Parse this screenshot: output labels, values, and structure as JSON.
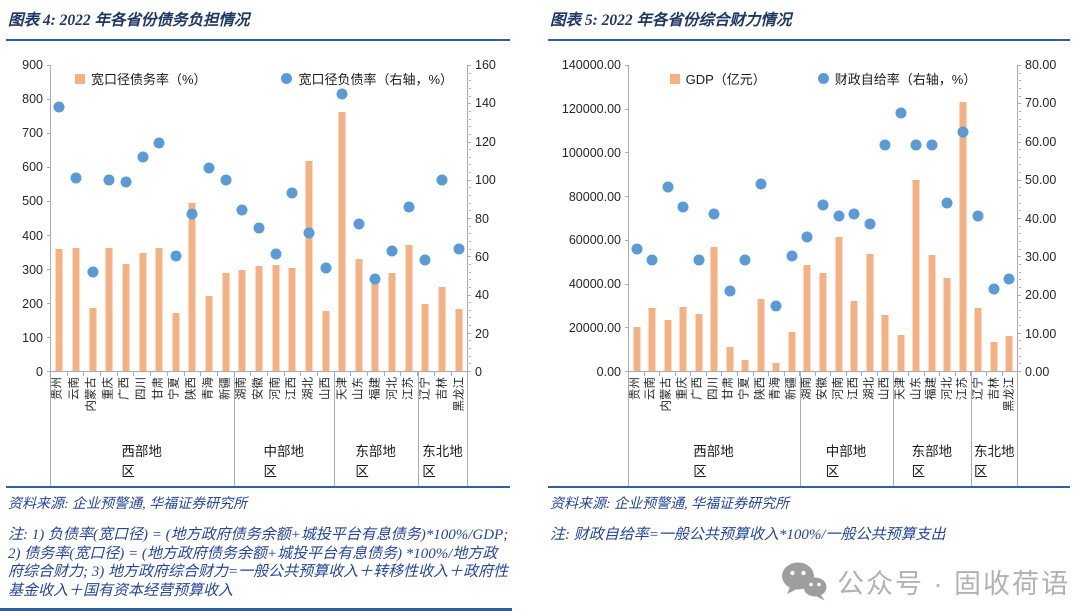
{
  "colors": {
    "bar": "#F4B183",
    "dot": "#5B9BD5",
    "title_text": "#1F3864",
    "note_text": "#24459A",
    "rule": "#2E5FA3",
    "axis": "#ACACAC",
    "watermark": "#B2B2B2"
  },
  "panels": [
    {
      "title": "图表 4: 2022 年各省份债务负担情况",
      "source": "资料来源: 企业预警通, 华福证券研究所",
      "note": "注: 1) 负债率(宽口径) = (地方政府债务余额+城投平台有息债务)*100%/GDP; 2) 债务率(宽口径) = (地方政府债务余额+城投平台有息债务) *100%/地方政府综合财力; 3) 地方政府综合财力=一般公共预算收入＋转移性收入＋政府性基金收入＋国有资本经营预算收入"
    },
    {
      "title": "图表 5: 2022 年各省份综合财力情况",
      "source": "资料来源: 企业预警通, 华福证券研究所",
      "note": "注: 财政自给率=一般公共预算收入*100%/一般公共预算支出"
    }
  ],
  "watermark": {
    "icon": "wechat-icon",
    "text": "公众号 · 固收荷语"
  },
  "chart_data": [
    {
      "type": "bar+scatter",
      "title": "2022 年各省份债务负担情况",
      "xlabel": "",
      "ylabel": "",
      "legend_position": "top",
      "grid": false,
      "categories": [
        "贵州",
        "云南",
        "内蒙古",
        "重庆",
        "广西",
        "四川",
        "甘肃",
        "宁夏",
        "陕西",
        "青海",
        "新疆",
        "湖南",
        "安徽",
        "河南",
        "江西",
        "湖北",
        "山西",
        "天津",
        "山东",
        "福建",
        "河北",
        "江苏",
        "辽宁",
        "吉林",
        "黑龙江"
      ],
      "groups": [
        {
          "label": "西部地区",
          "count": 11
        },
        {
          "label": "中部地区",
          "count": 6
        },
        {
          "label": "东部地区",
          "count": 5
        },
        {
          "label": "东北地区",
          "count": 3
        }
      ],
      "series": [
        {
          "name": "宽口径债务率（%）",
          "type": "bar",
          "axis": "left",
          "color": "#F4B183",
          "values": [
            358,
            362,
            185,
            363,
            315,
            348,
            363,
            170,
            493,
            222,
            289,
            298,
            309,
            312,
            304,
            619,
            177,
            762,
            329,
            260,
            287,
            371,
            197,
            248,
            183
          ]
        },
        {
          "name": "宽口径负债率（右轴，%）",
          "type": "scatter",
          "axis": "right",
          "color": "#5B9BD5",
          "values": [
            138,
            101,
            52,
            100,
            99,
            112,
            119,
            60,
            82,
            106,
            100,
            84,
            75,
            61,
            93,
            72,
            54,
            145,
            77,
            48,
            63,
            86,
            58,
            100,
            64
          ]
        }
      ],
      "axes": {
        "left": {
          "min": 0,
          "max": 900,
          "ticks": [
            "900",
            "800",
            "700",
            "600",
            "500",
            "400",
            "300",
            "200",
            "100",
            "0"
          ],
          "minor_ticks": false
        },
        "right": {
          "min": 0,
          "max": 160,
          "ticks": [
            "160",
            "140",
            "120",
            "100",
            "80",
            "60",
            "40",
            "20",
            "0"
          ],
          "minor_ticks": true
        }
      }
    },
    {
      "type": "bar+scatter",
      "title": "2022 年各省份综合财力情况",
      "xlabel": "",
      "ylabel": "",
      "legend_position": "top",
      "grid": false,
      "categories": [
        "贵州",
        "云南",
        "内蒙古",
        "重庆",
        "广西",
        "四川",
        "甘肃",
        "宁夏",
        "陕西",
        "青海",
        "新疆",
        "湖南",
        "安徽",
        "河南",
        "江西",
        "湖北",
        "山西",
        "天津",
        "山东",
        "福建",
        "河北",
        "江苏",
        "辽宁",
        "吉林",
        "黑龙江"
      ],
      "groups": [
        {
          "label": "西部地区",
          "count": 11
        },
        {
          "label": "中部地区",
          "count": 6
        },
        {
          "label": "东部地区",
          "count": 5
        },
        {
          "label": "东北地区",
          "count": 3
        }
      ],
      "series": [
        {
          "name": "GDP（亿元）",
          "type": "bar",
          "axis": "left",
          "color": "#F4B183",
          "values": [
            20165,
            28954,
            23159,
            29129,
            26301,
            56750,
            11202,
            5070,
            32773,
            3610,
            17741,
            48670,
            45045,
            61345,
            32075,
            53735,
            25643,
            16311,
            87435,
            53110,
            42370,
            122876,
            28975,
            13070,
            15901
          ]
        },
        {
          "name": "财政自给率（右轴，%）",
          "type": "scatter",
          "axis": "right",
          "color": "#5B9BD5",
          "values": [
            32,
            29,
            48,
            43,
            29,
            41,
            21,
            29,
            49,
            17,
            30,
            35,
            43.5,
            40.5,
            41,
            38.5,
            59,
            67.5,
            59,
            59,
            44,
            62.5,
            40.5,
            21.5,
            24
          ]
        }
      ],
      "axes": {
        "left": {
          "min": 0,
          "max": 140000,
          "ticks": [
            "140000.00",
            "120000.00",
            "100000.00",
            "80000.00",
            "60000.00",
            "40000.00",
            "20000.00",
            "0.00"
          ],
          "minor_ticks": false
        },
        "right": {
          "min": 0,
          "max": 80,
          "ticks": [
            "80.00",
            "70.00",
            "60.00",
            "50.00",
            "40.00",
            "30.00",
            "20.00",
            "10.00",
            "0.00"
          ],
          "minor_ticks": true
        }
      }
    }
  ]
}
